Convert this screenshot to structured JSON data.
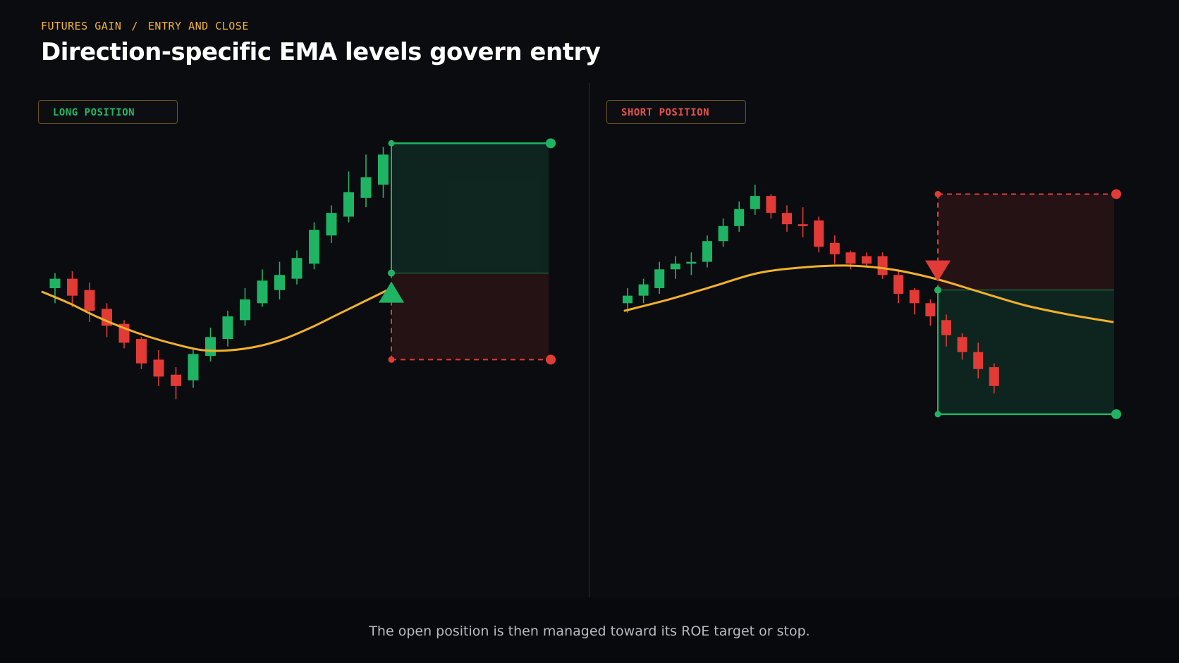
{
  "header": {
    "breadcrumb_app": "FUTURES GAIN",
    "breadcrumb_sep": "/",
    "breadcrumb_page": "ENTRY AND CLOSE",
    "title": "Direction-specific EMA levels govern entry"
  },
  "footer": {
    "text": "The open position is then managed toward its ROE target or stop."
  },
  "colors": {
    "up": "#1fb463",
    "down": "#e23b36",
    "ema": "#f2b12b",
    "accent": "#f2b43a"
  },
  "chart_data": [
    {
      "type": "candlestick",
      "label": "LONG POSITION",
      "direction": "long",
      "y_range": [
        0,
        100
      ],
      "candles": [
        {
          "o": 56.0,
          "c": 58.5,
          "h": 60.0,
          "l": 52.0
        },
        {
          "o": 58.5,
          "c": 54.0,
          "h": 60.5,
          "l": 51.0
        },
        {
          "o": 55.5,
          "c": 50.0,
          "h": 57.5,
          "l": 47.0
        },
        {
          "o": 50.5,
          "c": 46.0,
          "h": 52.0,
          "l": 43.0
        },
        {
          "o": 46.5,
          "c": 41.5,
          "h": 47.5,
          "l": 40.0
        },
        {
          "o": 42.5,
          "c": 36.0,
          "h": 43.0,
          "l": 34.5
        },
        {
          "o": 37.0,
          "c": 32.5,
          "h": 39.5,
          "l": 30.0
        },
        {
          "o": 33.0,
          "c": 30.0,
          "h": 35.0,
          "l": 26.5
        },
        {
          "o": 31.5,
          "c": 38.5,
          "h": 40.0,
          "l": 29.5
        },
        {
          "o": 38.0,
          "c": 43.0,
          "h": 45.5,
          "l": 36.5
        },
        {
          "o": 42.5,
          "c": 48.5,
          "h": 50.0,
          "l": 40.5
        },
        {
          "o": 47.5,
          "c": 53.0,
          "h": 56.0,
          "l": 46.0
        },
        {
          "o": 52.0,
          "c": 58.0,
          "h": 61.0,
          "l": 51.0
        },
        {
          "o": 55.5,
          "c": 59.5,
          "h": 63.0,
          "l": 53.0
        },
        {
          "o": 58.5,
          "c": 64.0,
          "h": 66.0,
          "l": 57.0
        },
        {
          "o": 62.5,
          "c": 71.5,
          "h": 73.5,
          "l": 61.0
        },
        {
          "o": 70.0,
          "c": 76.0,
          "h": 78.0,
          "l": 68.0
        },
        {
          "o": 75.0,
          "c": 81.5,
          "h": 87.0,
          "l": 73.5
        },
        {
          "o": 80.0,
          "c": 85.5,
          "h": 91.5,
          "l": 77.5
        },
        {
          "o": 83.5,
          "c": 91.5,
          "h": 93.5,
          "l": 80.0
        }
      ],
      "ema": [
        55.0,
        52.0,
        48.5,
        45.5,
        43.0,
        41.0,
        39.5,
        39.5,
        40.5,
        42.5,
        45.5,
        49.0,
        52.5,
        56.0
      ],
      "entry": 60.0,
      "take_profit": 94.5,
      "stop": 37.0,
      "entry_marker": "up-triangle-icon"
    },
    {
      "type": "candlestick",
      "label": "SHORT POSITION",
      "direction": "short",
      "y_range": [
        0,
        100
      ],
      "candles": [
        {
          "o": 52.0,
          "c": 54.0,
          "h": 56.0,
          "l": 49.5
        },
        {
          "o": 54.0,
          "c": 57.0,
          "h": 58.5,
          "l": 52.0
        },
        {
          "o": 56.0,
          "c": 61.0,
          "h": 63.0,
          "l": 54.5
        },
        {
          "o": 61.0,
          "c": 62.5,
          "h": 64.5,
          "l": 58.5
        },
        {
          "o": 62.5,
          "c": 63.0,
          "h": 65.5,
          "l": 59.5
        },
        {
          "o": 63.0,
          "c": 68.5,
          "h": 70.0,
          "l": 61.5
        },
        {
          "o": 68.5,
          "c": 72.5,
          "h": 74.5,
          "l": 67.0
        },
        {
          "o": 72.5,
          "c": 77.0,
          "h": 79.0,
          "l": 71.0
        },
        {
          "o": 77.0,
          "c": 80.5,
          "h": 83.5,
          "l": 75.5
        },
        {
          "o": 80.5,
          "c": 76.0,
          "h": 81.0,
          "l": 74.5
        },
        {
          "o": 76.0,
          "c": 73.0,
          "h": 78.0,
          "l": 71.0
        },
        {
          "o": 73.0,
          "c": 72.5,
          "h": 77.5,
          "l": 69.5
        },
        {
          "o": 74.0,
          "c": 67.0,
          "h": 75.0,
          "l": 65.5
        },
        {
          "o": 68.0,
          "c": 65.0,
          "h": 70.0,
          "l": 62.5
        },
        {
          "o": 65.5,
          "c": 62.5,
          "h": 66.0,
          "l": 61.0
        },
        {
          "o": 64.5,
          "c": 62.5,
          "h": 65.5,
          "l": 61.5
        },
        {
          "o": 64.5,
          "c": 59.5,
          "h": 65.5,
          "l": 58.5
        },
        {
          "o": 59.5,
          "c": 54.5,
          "h": 61.0,
          "l": 52.0
        },
        {
          "o": 55.5,
          "c": 52.0,
          "h": 56.0,
          "l": 49.0
        },
        {
          "o": 52.0,
          "c": 48.5,
          "h": 53.0,
          "l": 46.0
        },
        {
          "o": 47.5,
          "c": 43.5,
          "h": 49.0,
          "l": 40.5
        },
        {
          "o": 43.0,
          "c": 39.0,
          "h": 44.0,
          "l": 37.0
        },
        {
          "o": 39.0,
          "c": 34.5,
          "h": 41.5,
          "l": 32.0
        },
        {
          "o": 35.0,
          "c": 30.0,
          "h": 36.0,
          "l": 28.0
        }
      ],
      "ema": [
        50.0,
        53.0,
        56.5,
        60.0,
        61.5,
        62.0,
        61.0,
        58.5,
        55.0,
        51.5,
        49.0,
        47.0
      ],
      "entry": 55.5,
      "take_profit": 22.5,
      "stop": 81.0,
      "entry_marker": "down-triangle-icon"
    }
  ]
}
